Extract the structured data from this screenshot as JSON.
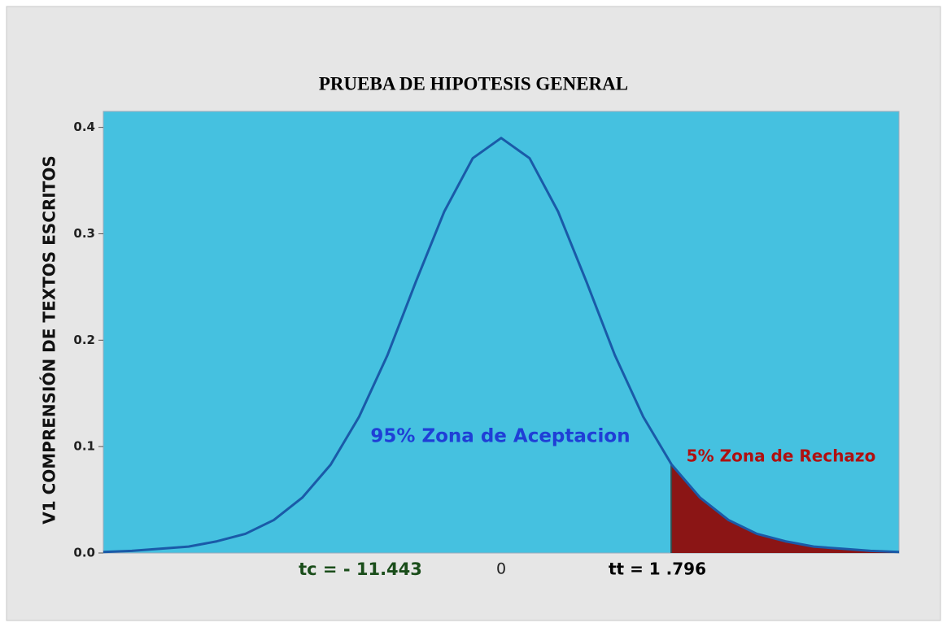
{
  "chart_data": {
    "type": "area",
    "title": "PRUEBA DE HIPOTESIS GENERAL",
    "ylabel": "V1  COMPRENSIÓN DE TEXTOS ESCRITOS",
    "xlim": [
      -4.2,
      4.2
    ],
    "ylim": [
      0,
      0.415
    ],
    "xticks": [
      0
    ],
    "yticks": [
      {
        "value": 0,
        "label": "0.0"
      },
      0.1,
      0.2,
      0.3,
      0.4
    ],
    "background": "#45c1e0",
    "series": [
      {
        "color": "#1a5aa8",
        "x": [
          -4.2,
          -3.9,
          -3.6,
          -3.3,
          -3.0,
          -2.7,
          -2.4,
          -2.1,
          -1.8,
          -1.5,
          -1.2,
          -0.9,
          -0.6,
          -0.3,
          0,
          0.3,
          0.6,
          0.9,
          1.2,
          1.5,
          1.8,
          2.1,
          2.4,
          2.7,
          3.0,
          3.3,
          3.6,
          3.9,
          4.2
        ],
        "values": [
          0.001,
          0.002,
          0.004,
          0.006,
          0.011,
          0.018,
          0.031,
          0.052,
          0.083,
          0.128,
          0.186,
          0.255,
          0.321,
          0.371,
          0.39,
          0.371,
          0.321,
          0.255,
          0.186,
          0.128,
          0.083,
          0.052,
          0.031,
          0.018,
          0.011,
          0.006,
          0.004,
          0.002,
          0.001
        ]
      }
    ],
    "critical_value": 1.796,
    "critical_label": "tt = 1 .796",
    "rejection_color": "#8b1515",
    "annotations": [
      {
        "text": "95%  Zona de Aceptacion",
        "color": "#1f3fd6"
      },
      {
        "text": "5% Zona de Rechazo",
        "color": "#b01010"
      },
      {
        "text": "tc = - 11.443",
        "color": "#1a4d1a"
      }
    ]
  }
}
